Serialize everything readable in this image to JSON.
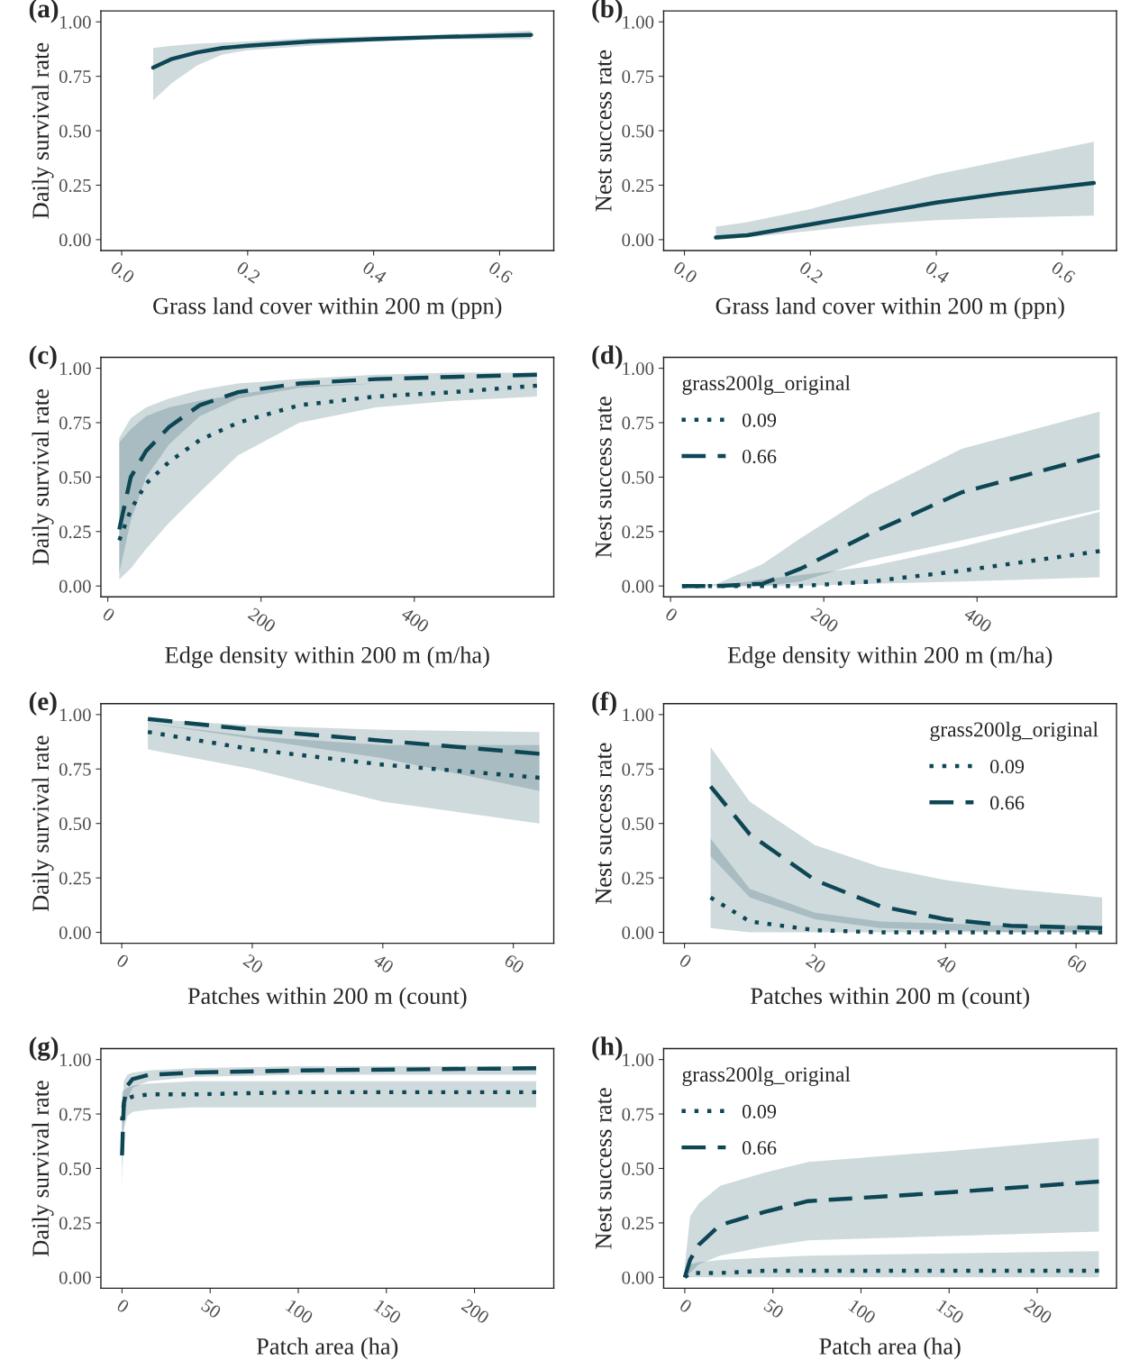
{
  "chart_data": [
    {
      "type": "line",
      "title": "(a)",
      "xlabel": "Grass land cover within 200 m (ppn)",
      "ylabel": "Daily survival rate",
      "xlim": [
        -0.033,
        0.686
      ],
      "ylim": [
        -0.05,
        1.05
      ],
      "xticks": [
        {
          "value": 0,
          "label": "0.0"
        },
        {
          "value": 0.2,
          "label": "0.2"
        },
        {
          "value": 0.4,
          "label": "0.4"
        },
        {
          "value": 0.6,
          "label": "0.6"
        }
      ],
      "yticks": [
        {
          "value": 0,
          "label": "0.00"
        },
        {
          "value": 0.25,
          "label": "0.25"
        },
        {
          "value": 0.5,
          "label": "0.50"
        },
        {
          "value": 0.75,
          "label": "0.75"
        },
        {
          "value": 1,
          "label": "1.00"
        }
      ],
      "grid": false,
      "legend": false,
      "series": [
        {
          "color": "#0d4654",
          "line_style": "solid",
          "x": [
            0.05,
            0.08,
            0.12,
            0.16,
            0.2,
            0.3,
            0.4,
            0.5,
            0.65
          ],
          "values": [
            0.79,
            0.83,
            0.86,
            0.88,
            0.89,
            0.91,
            0.92,
            0.93,
            0.94
          ],
          "lower": [
            0.64,
            0.72,
            0.8,
            0.85,
            0.87,
            0.89,
            0.91,
            0.92,
            0.92
          ],
          "upper": [
            0.88,
            0.89,
            0.9,
            0.905,
            0.91,
            0.925,
            0.935,
            0.94,
            0.96
          ]
        }
      ]
    },
    {
      "type": "line",
      "title": "(b)",
      "xlabel": "Grass land cover within 200 m (ppn)",
      "ylabel": "Nest success rate",
      "xlim": [
        -0.033,
        0.686
      ],
      "ylim": [
        -0.05,
        1.05
      ],
      "xticks": [
        {
          "value": 0,
          "label": "0.0"
        },
        {
          "value": 0.2,
          "label": "0.2"
        },
        {
          "value": 0.4,
          "label": "0.4"
        },
        {
          "value": 0.6,
          "label": "0.6"
        }
      ],
      "yticks": [
        {
          "value": 0,
          "label": "0.00"
        },
        {
          "value": 0.25,
          "label": "0.25"
        },
        {
          "value": 0.5,
          "label": "0.50"
        },
        {
          "value": 0.75,
          "label": "0.75"
        },
        {
          "value": 1,
          "label": "1.00"
        }
      ],
      "grid": false,
      "legend": false,
      "series": [
        {
          "color": "#0d4654",
          "line_style": "solid",
          "x": [
            0.05,
            0.1,
            0.2,
            0.3,
            0.4,
            0.5,
            0.65
          ],
          "values": [
            0.01,
            0.02,
            0.07,
            0.12,
            0.17,
            0.21,
            0.26
          ],
          "lower": [
            0.0,
            0.01,
            0.04,
            0.07,
            0.09,
            0.1,
            0.11
          ],
          "upper": [
            0.06,
            0.08,
            0.14,
            0.22,
            0.3,
            0.36,
            0.45
          ]
        }
      ]
    },
    {
      "type": "line",
      "title": "(c)",
      "xlabel": "Edge density within 200 m (m/ha)",
      "ylabel": "Daily survival rate",
      "xlim": [
        -9,
        582
      ],
      "ylim": [
        -0.05,
        1.05
      ],
      "xticks": [
        0,
        200,
        400
      ],
      "yticks": [
        {
          "value": 0,
          "label": "0.00"
        },
        {
          "value": 0.25,
          "label": "0.25"
        },
        {
          "value": 0.5,
          "label": "0.50"
        },
        {
          "value": 0.75,
          "label": "0.75"
        },
        {
          "value": 1,
          "label": "1.00"
        }
      ],
      "grid": false,
      "legend": false,
      "series": [
        {
          "color": "#0d4654",
          "line_style": "dotted",
          "x": [
            15,
            30,
            50,
            80,
            120,
            170,
            250,
            350,
            450,
            560
          ],
          "values": [
            0.21,
            0.35,
            0.47,
            0.57,
            0.67,
            0.75,
            0.83,
            0.87,
            0.89,
            0.92
          ],
          "lower": [
            0.03,
            0.08,
            0.17,
            0.29,
            0.43,
            0.6,
            0.75,
            0.82,
            0.85,
            0.87
          ],
          "upper": [
            0.66,
            0.72,
            0.78,
            0.82,
            0.85,
            0.88,
            0.92,
            0.93,
            0.94,
            0.95
          ]
        },
        {
          "color": "#0d4654",
          "line_style": "dashed",
          "x": [
            15,
            30,
            50,
            80,
            120,
            170,
            250,
            350,
            450,
            560
          ],
          "values": [
            0.26,
            0.5,
            0.62,
            0.73,
            0.83,
            0.89,
            0.93,
            0.95,
            0.96,
            0.97
          ],
          "lower": [
            0.06,
            0.3,
            0.5,
            0.65,
            0.78,
            0.86,
            0.91,
            0.93,
            0.94,
            0.95
          ],
          "upper": [
            0.68,
            0.77,
            0.82,
            0.86,
            0.9,
            0.93,
            0.95,
            0.97,
            0.98,
            0.98
          ]
        }
      ]
    },
    {
      "type": "line",
      "title": "(d)",
      "xlabel": "Edge density within 200 m (m/ha)",
      "ylabel": "Nest success rate",
      "legend_title": "grass200lg_original",
      "xlim": [
        -9,
        582
      ],
      "ylim": [
        -0.05,
        1.05
      ],
      "xticks": [
        0,
        200,
        400
      ],
      "yticks": [
        {
          "value": 0,
          "label": "0.00"
        },
        {
          "value": 0.25,
          "label": "0.25"
        },
        {
          "value": 0.5,
          "label": "0.50"
        },
        {
          "value": 0.75,
          "label": "0.75"
        },
        {
          "value": 1,
          "label": "1.00"
        }
      ],
      "grid": false,
      "legend": "top left",
      "series": [
        {
          "name": "0.09",
          "color": "#0d4654",
          "line_style": "dotted",
          "x": [
            15,
            60,
            120,
            170,
            260,
            380,
            560
          ],
          "values": [
            0,
            0,
            0,
            0,
            0.02,
            0.07,
            0.16
          ],
          "lower": [
            0,
            0,
            0,
            0,
            0.01,
            0.02,
            0.04
          ],
          "upper": [
            0,
            0,
            0.03,
            0.05,
            0.09,
            0.18,
            0.34
          ]
        },
        {
          "name": "0.66",
          "color": "#0d4654",
          "line_style": "dashed",
          "x": [
            15,
            60,
            120,
            170,
            260,
            380,
            560
          ],
          "values": [
            0,
            0,
            0.01,
            0.08,
            0.24,
            0.43,
            0.6
          ],
          "lower": [
            0,
            0,
            0,
            0.02,
            0.12,
            0.21,
            0.35
          ],
          "upper": [
            0,
            0.01,
            0.1,
            0.22,
            0.42,
            0.63,
            0.8
          ]
        }
      ]
    },
    {
      "type": "line",
      "title": "(e)",
      "xlabel": "Patches within 200 m (count)",
      "ylabel": "Daily survival rate",
      "xlim": [
        -3.2,
        66.2
      ],
      "ylim": [
        -0.05,
        1.05
      ],
      "xticks": [
        0,
        20,
        40,
        60
      ],
      "yticks": [
        {
          "value": 0,
          "label": "0.00"
        },
        {
          "value": 0.25,
          "label": "0.25"
        },
        {
          "value": 0.5,
          "label": "0.50"
        },
        {
          "value": 0.75,
          "label": "0.75"
        },
        {
          "value": 1,
          "label": "1.00"
        }
      ],
      "grid": false,
      "legend": false,
      "series": [
        {
          "color": "#0d4654",
          "line_style": "dotted",
          "x": [
            4,
            20,
            40,
            64
          ],
          "values": [
            0.92,
            0.84,
            0.77,
            0.71
          ],
          "lower": [
            0.84,
            0.75,
            0.6,
            0.5
          ],
          "upper": [
            0.96,
            0.9,
            0.86,
            0.86
          ]
        },
        {
          "color": "#0d4654",
          "line_style": "dashed",
          "x": [
            4,
            20,
            40,
            64
          ],
          "values": [
            0.98,
            0.93,
            0.88,
            0.82
          ],
          "lower": [
            0.96,
            0.89,
            0.8,
            0.65
          ],
          "upper": [
            0.98,
            0.95,
            0.93,
            0.92
          ]
        }
      ]
    },
    {
      "type": "line",
      "title": "(f)",
      "xlabel": "Patches within 200 m (count)",
      "ylabel": "Nest success rate",
      "legend_title": "grass200lg_original",
      "xlim": [
        -3.2,
        66.2
      ],
      "ylim": [
        -0.05,
        1.05
      ],
      "xticks": [
        0,
        20,
        40,
        60
      ],
      "yticks": [
        {
          "value": 0,
          "label": "0.00"
        },
        {
          "value": 0.25,
          "label": "0.25"
        },
        {
          "value": 0.5,
          "label": "0.50"
        },
        {
          "value": 0.75,
          "label": "0.75"
        },
        {
          "value": 1,
          "label": "1.00"
        }
      ],
      "grid": false,
      "legend": "top right",
      "series": [
        {
          "name": "0.09",
          "color": "#0d4654",
          "line_style": "dotted",
          "x": [
            4,
            10,
            20,
            30,
            40,
            50,
            64
          ],
          "values": [
            0.16,
            0.05,
            0.01,
            0,
            0,
            0,
            0
          ],
          "lower": [
            0.02,
            0,
            0,
            0,
            0,
            0,
            0
          ],
          "upper": [
            0.43,
            0.2,
            0.09,
            0.05,
            0.04,
            0.03,
            0.03
          ]
        },
        {
          "name": "0.66",
          "color": "#0d4654",
          "line_style": "dashed",
          "x": [
            4,
            10,
            20,
            30,
            40,
            50,
            64
          ],
          "values": [
            0.67,
            0.45,
            0.24,
            0.12,
            0.06,
            0.03,
            0.02
          ],
          "lower": [
            0.35,
            0.16,
            0.06,
            0.02,
            0.01,
            0,
            0
          ],
          "upper": [
            0.85,
            0.6,
            0.4,
            0.3,
            0.24,
            0.2,
            0.16
          ]
        }
      ]
    },
    {
      "type": "line",
      "title": "(g)",
      "xlabel": "Patch area (ha)",
      "ylabel": "Daily survival rate",
      "xlim": [
        -12,
        245
      ],
      "ylim": [
        -0.05,
        1.05
      ],
      "xticks": [
        0,
        50,
        100,
        150,
        200
      ],
      "yticks": [
        {
          "value": 0,
          "label": "0.00"
        },
        {
          "value": 0.25,
          "label": "0.25"
        },
        {
          "value": 0.5,
          "label": "0.50"
        },
        {
          "value": 0.75,
          "label": "0.75"
        },
        {
          "value": 1,
          "label": "1.00"
        }
      ],
      "grid": false,
      "legend": false,
      "series": [
        {
          "color": "#0d4654",
          "line_style": "dotted",
          "x": [
            0,
            1,
            3,
            6,
            15,
            40,
            100,
            235
          ],
          "values": [
            0.72,
            0.8,
            0.82,
            0.83,
            0.84,
            0.84,
            0.85,
            0.85
          ],
          "lower": [
            0.5,
            0.68,
            0.74,
            0.76,
            0.77,
            0.78,
            0.78,
            0.78
          ],
          "upper": [
            0.85,
            0.86,
            0.87,
            0.88,
            0.89,
            0.9,
            0.9,
            0.9
          ]
        },
        {
          "color": "#0d4654",
          "line_style": "dashed",
          "x": [
            0,
            1,
            3,
            6,
            15,
            40,
            100,
            235
          ],
          "values": [
            0.56,
            0.8,
            0.88,
            0.91,
            0.93,
            0.94,
            0.95,
            0.96
          ],
          "lower": [
            0.42,
            0.7,
            0.82,
            0.87,
            0.9,
            0.92,
            0.93,
            0.93
          ],
          "upper": [
            0.75,
            0.9,
            0.93,
            0.94,
            0.95,
            0.96,
            0.97,
            0.97
          ]
        }
      ]
    },
    {
      "type": "line",
      "title": "(h)",
      "xlabel": "Patch area (ha)",
      "ylabel": "Nest success rate",
      "legend_title": "grass200lg_original",
      "xlim": [
        -12,
        245
      ],
      "ylim": [
        -0.05,
        1.05
      ],
      "xticks": [
        0,
        50,
        100,
        150,
        200
      ],
      "yticks": [
        {
          "value": 0,
          "label": "0.00"
        },
        {
          "value": 0.25,
          "label": "0.25"
        },
        {
          "value": 0.5,
          "label": "0.50"
        },
        {
          "value": 0.75,
          "label": "0.75"
        },
        {
          "value": 1,
          "label": "1.00"
        }
      ],
      "grid": false,
      "legend": "top left",
      "series": [
        {
          "name": "0.09",
          "color": "#0d4654",
          "line_style": "dotted",
          "x": [
            0,
            3,
            8,
            20,
            45,
            70,
            150,
            235
          ],
          "values": [
            0,
            0.02,
            0.02,
            0.02,
            0.03,
            0.03,
            0.03,
            0.03
          ],
          "lower": [
            0,
            0,
            0,
            0,
            0,
            0,
            0,
            0
          ],
          "upper": [
            0.04,
            0.06,
            0.07,
            0.08,
            0.09,
            0.1,
            0.11,
            0.12
          ]
        },
        {
          "name": "0.66",
          "color": "#0d4654",
          "line_style": "dashed",
          "x": [
            0,
            3,
            8,
            20,
            45,
            70,
            150,
            235
          ],
          "values": [
            0,
            0.08,
            0.15,
            0.24,
            0.3,
            0.35,
            0.39,
            0.44
          ],
          "lower": [
            0,
            0.02,
            0.06,
            0.1,
            0.14,
            0.17,
            0.19,
            0.21
          ],
          "upper": [
            0.05,
            0.28,
            0.34,
            0.42,
            0.48,
            0.53,
            0.58,
            0.64
          ]
        }
      ]
    }
  ]
}
